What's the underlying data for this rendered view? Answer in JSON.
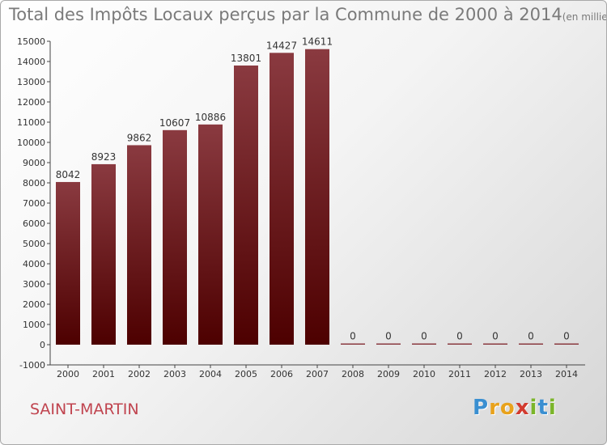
{
  "header": {
    "title": "Total des Impôts Locaux perçus par la Commune de 2000 à 2014",
    "unit": "(en milliers d'€)"
  },
  "footer": {
    "place": "SAINT-MARTIN",
    "logo": {
      "text": "Proxiti",
      "letters": [
        {
          "ch": "P",
          "color": "#3a8fd1"
        },
        {
          "ch": "r",
          "color": "#e8a21c"
        },
        {
          "ch": "o",
          "color": "#e8a21c"
        },
        {
          "ch": "x",
          "color": "#d23b2f"
        },
        {
          "ch": "i",
          "color": "#7bb52a"
        },
        {
          "ch": "t",
          "color": "#3a8fd1"
        },
        {
          "ch": "i",
          "color": "#7bb52a"
        }
      ]
    }
  },
  "colors": {
    "bar_top": "#8a3a40",
    "bar_bottom": "#4d0000",
    "axis": "#444444",
    "grid_text": "#333333"
  },
  "chart_data": {
    "type": "bar",
    "title": "Total des Impôts Locaux perçus par la Commune de 2000 à 2014",
    "subtitle": "(en milliers d'€)",
    "categories": [
      "2000",
      "2001",
      "2002",
      "2003",
      "2004",
      "2005",
      "2006",
      "2007",
      "2008",
      "2009",
      "2010",
      "2011",
      "2012",
      "2013",
      "2014"
    ],
    "values": [
      8042,
      8923,
      9862,
      10607,
      10886,
      13801,
      14427,
      14611,
      0,
      0,
      0,
      0,
      0,
      0,
      0
    ],
    "ylim": [
      -1000,
      15000
    ],
    "yticks": [
      -1000,
      0,
      1000,
      2000,
      3000,
      4000,
      5000,
      6000,
      7000,
      8000,
      9000,
      10000,
      11000,
      12000,
      13000,
      14000,
      15000
    ],
    "xlabel": "",
    "ylabel": "",
    "grid": false,
    "legend": "none"
  }
}
